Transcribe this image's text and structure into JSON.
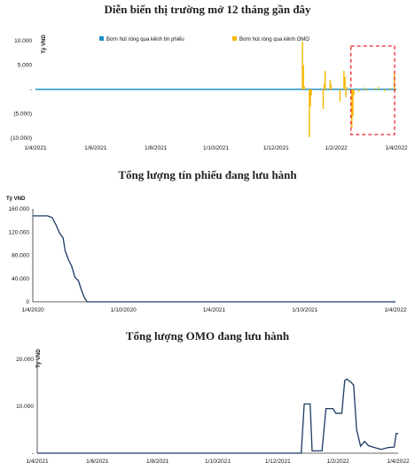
{
  "chart_data": [
    {
      "type": "bar",
      "title": "Diễn biến thị trường mở 12 tháng gần đây",
      "ylabel": "Tỷ VND",
      "ylim": [
        -10000,
        10000
      ],
      "yticks": [
        "10.000",
        "5.000",
        "-",
        "(5.000)",
        "(10.000)"
      ],
      "xticks": [
        "1/4/2021",
        "1/6/2021",
        "1/8/2021",
        "1/10/2021",
        "1/12/2021",
        "1/2/2022",
        "1/4/2022"
      ],
      "x_range": [
        "2021-04-01",
        "2022-04-01"
      ],
      "highlight_box": {
        "from": "2022-02-14",
        "to": "2022-04-01",
        "color": "#e8262c",
        "style": "dashed"
      },
      "series": [
        {
          "name": "Bơm hút ròng qua kênh tín phiếu",
          "color": "#1f8fc6",
          "points": []
        },
        {
          "name": "Bơm hút ròng qua kênh OMO",
          "color": "#f5b800",
          "points": [
            [
              "2021-12-27",
              9800
            ],
            [
              "2021-12-28",
              5000
            ],
            [
              "2021-12-29",
              600
            ],
            [
              "2022-01-03",
              -9800
            ],
            [
              "2022-01-04",
              -3500
            ],
            [
              "2022-01-05",
              -1200
            ],
            [
              "2022-01-17",
              -4000
            ],
            [
              "2022-01-18",
              1200
            ],
            [
              "2022-01-19",
              3800
            ],
            [
              "2022-01-24",
              2000
            ],
            [
              "2022-01-25",
              1000
            ],
            [
              "2022-02-03",
              -2500
            ],
            [
              "2022-02-07",
              3800
            ],
            [
              "2022-02-08",
              2600
            ],
            [
              "2022-02-09",
              -1600
            ],
            [
              "2022-02-10",
              500
            ],
            [
              "2022-02-15",
              -7800
            ],
            [
              "2022-02-16",
              -5500
            ],
            [
              "2022-02-17",
              -1200
            ],
            [
              "2022-02-22",
              -500
            ],
            [
              "2022-02-28",
              400
            ],
            [
              "2022-03-02",
              -300
            ],
            [
              "2022-03-10",
              300
            ],
            [
              "2022-03-14",
              500
            ],
            [
              "2022-03-20",
              -400
            ],
            [
              "2022-03-26",
              300
            ],
            [
              "2022-03-30",
              3200
            ]
          ]
        }
      ],
      "legend_position": "top"
    },
    {
      "type": "line",
      "title": "Tổng lượng tín phiếu đang lưu hành",
      "ylabel": "Tỷ VND",
      "ylim": [
        0,
        160000
      ],
      "yticks": [
        "160.000",
        "120.000",
        "80.000",
        "40.000",
        "0"
      ],
      "xticks": [
        "1/4/2020",
        "1/10/2020",
        "1/4/2021",
        "1/10/2021",
        "1/4/2022"
      ],
      "x_range": [
        "2020-04-01",
        "2022-04-01"
      ],
      "series": [
        {
          "color": "#1b3a63",
          "points": [
            [
              "2020-04-01",
              148000
            ],
            [
              "2020-05-01",
              148000
            ],
            [
              "2020-05-10",
              145000
            ],
            [
              "2020-05-18",
              132000
            ],
            [
              "2020-05-25",
              118000
            ],
            [
              "2020-06-01",
              110000
            ],
            [
              "2020-06-05",
              88000
            ],
            [
              "2020-06-12",
              72000
            ],
            [
              "2020-06-18",
              62000
            ],
            [
              "2020-06-25",
              42000
            ],
            [
              "2020-07-02",
              36000
            ],
            [
              "2020-07-08",
              20000
            ],
            [
              "2020-07-15",
              5000
            ],
            [
              "2020-07-20",
              0
            ],
            [
              "2022-04-01",
              0
            ]
          ]
        }
      ]
    },
    {
      "type": "line",
      "title": "Tổng lượng OMO đang lưu hành",
      "ylabel": "Tỷ VND",
      "ylim": [
        0,
        20000
      ],
      "yticks": [
        "20.000",
        "10.000",
        "-"
      ],
      "xticks": [
        "1/4/2021",
        "1/6/2021",
        "1/8/2021",
        "1/10/2021",
        "1/12/2021",
        "1/2/2022",
        "1/4/2022"
      ],
      "x_range": [
        "2021-04-01",
        "2022-04-01"
      ],
      "series": [
        {
          "color": "#1b3a63",
          "points": [
            [
              "2021-04-01",
              0
            ],
            [
              "2021-12-24",
              0
            ],
            [
              "2021-12-27",
              10500
            ],
            [
              "2022-01-02",
              10500
            ],
            [
              "2022-01-04",
              500
            ],
            [
              "2022-01-14",
              500
            ],
            [
              "2022-01-18",
              9500
            ],
            [
              "2022-01-25",
              9500
            ],
            [
              "2022-01-28",
              8500
            ],
            [
              "2022-02-03",
              8500
            ],
            [
              "2022-02-06",
              15500
            ],
            [
              "2022-02-08",
              15800
            ],
            [
              "2022-02-12",
              15200
            ],
            [
              "2022-02-15",
              14500
            ],
            [
              "2022-02-18",
              5000
            ],
            [
              "2022-02-22",
              1500
            ],
            [
              "2022-02-26",
              2500
            ],
            [
              "2022-03-02",
              1600
            ],
            [
              "2022-03-08",
              1200
            ],
            [
              "2022-03-15",
              800
            ],
            [
              "2022-03-22",
              1200
            ],
            [
              "2022-03-28",
              1300
            ],
            [
              "2022-03-30",
              4200
            ],
            [
              "2022-04-01",
              4200
            ]
          ]
        }
      ]
    }
  ]
}
